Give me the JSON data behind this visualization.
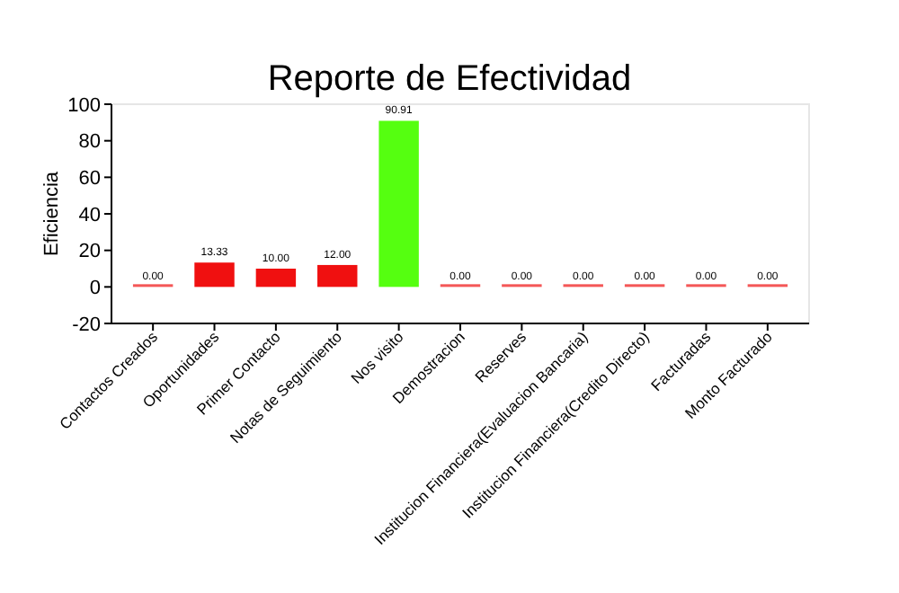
{
  "chart_data": {
    "type": "bar",
    "title": "Reporte de Efectividad",
    "ylabel": "Eficiencia",
    "categories": [
      "Contactos Creados",
      "Oportunidades",
      "Primer Contacto",
      "Notas de Seguimiento",
      "Nos visito",
      "Demostracion",
      "Reserves",
      "Institucion Financiera(Evaluacion Bancaria)",
      "Institucion Financiera(Credito Directo)",
      "Facturadas",
      "Monto Facturado"
    ],
    "values": [
      0,
      13.33,
      10,
      12,
      90.91,
      0,
      0,
      0,
      0,
      0,
      0
    ],
    "value_labels": [
      "0.00",
      "13.33",
      "10.00",
      "12.00",
      "90.91",
      "0.00",
      "0.00",
      "0.00",
      "0.00",
      "0.00",
      "0.00"
    ],
    "colors": [
      "#f01010",
      "#f01010",
      "#f01010",
      "#f01010",
      "#55ff10",
      "#f01010",
      "#f01010",
      "#f01010",
      "#f01010",
      "#f01010",
      "#f01010"
    ],
    "ylim": [
      -20,
      100
    ],
    "yticks": [
      -20,
      0,
      20,
      40,
      60,
      80,
      100
    ],
    "grid": false
  }
}
